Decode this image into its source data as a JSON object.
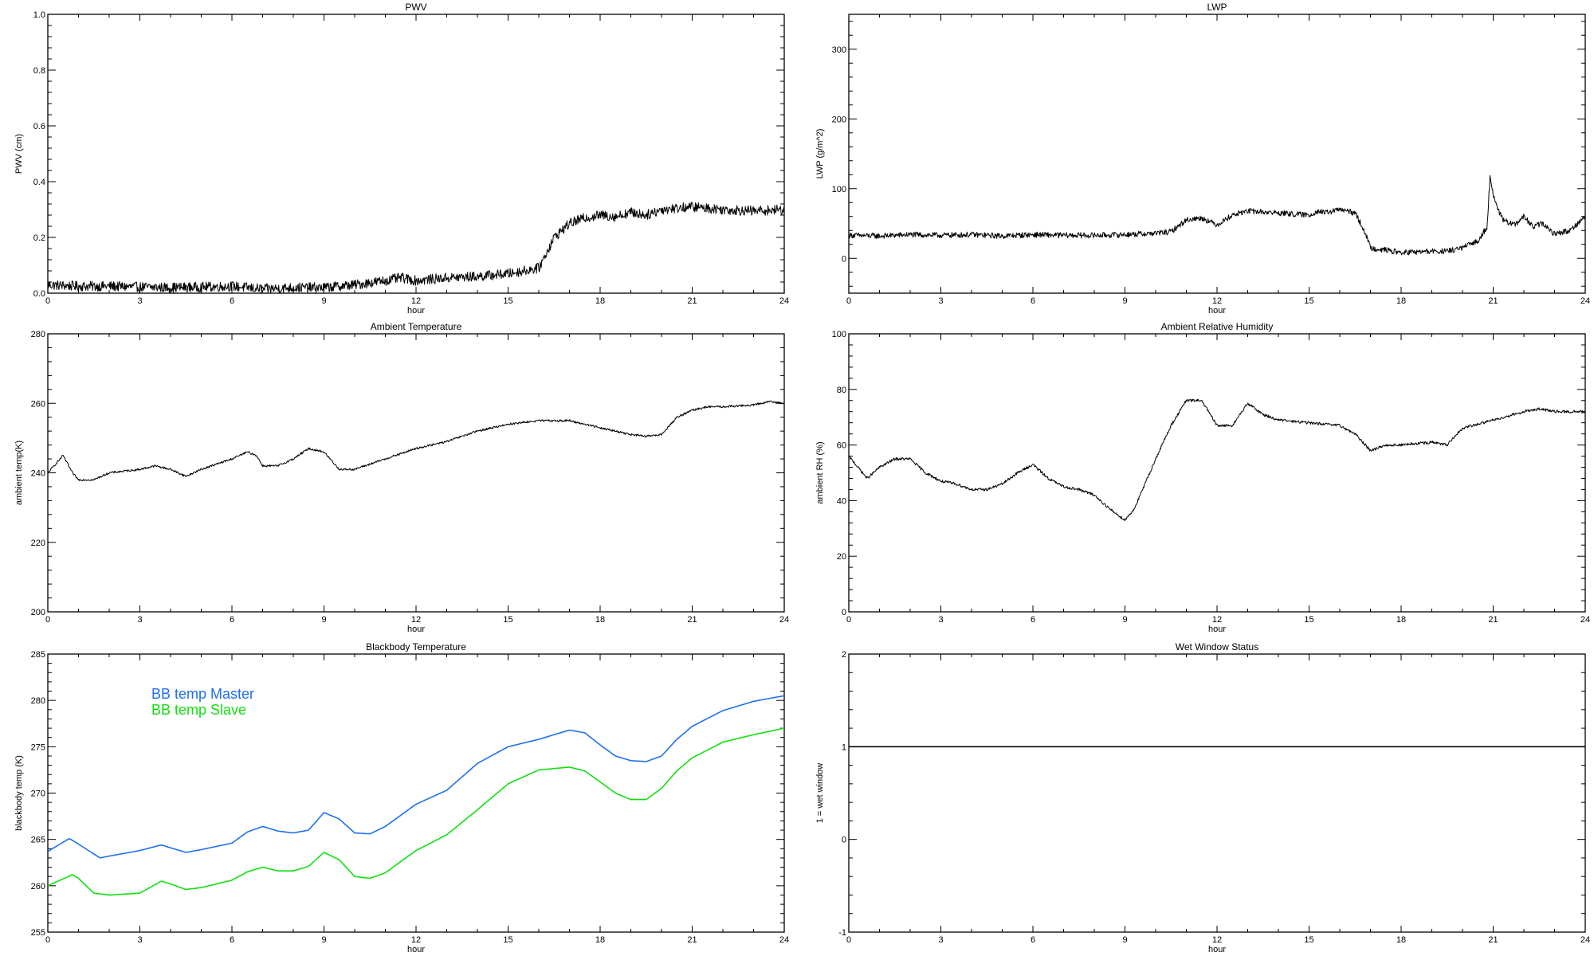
{
  "chart_data": [
    {
      "type": "line",
      "title": "PWV",
      "xlabel": "hour",
      "ylabel": "PWV (cm)",
      "xlim": [
        0,
        24
      ],
      "ylim": [
        0.0,
        1.0
      ],
      "xticks": [
        "0",
        "3",
        "6",
        "9",
        "12",
        "15",
        "18",
        "21",
        "24"
      ],
      "yticks": [
        "0.0",
        "0.2",
        "0.4",
        "0.6",
        "0.8",
        "1.0"
      ],
      "noise": 0.018,
      "series": [
        {
          "color": "#000000",
          "x": [
            0,
            1,
            2,
            3,
            4,
            5,
            6,
            7,
            8,
            9,
            10,
            11,
            11.5,
            12,
            13,
            14,
            15,
            15.5,
            16,
            16.5,
            17,
            17.5,
            18,
            18.5,
            19,
            19.5,
            20,
            21,
            22,
            23,
            24
          ],
          "y": [
            0.03,
            0.025,
            0.025,
            0.022,
            0.02,
            0.022,
            0.025,
            0.015,
            0.02,
            0.02,
            0.03,
            0.045,
            0.055,
            0.045,
            0.055,
            0.06,
            0.07,
            0.08,
            0.09,
            0.2,
            0.25,
            0.27,
            0.28,
            0.275,
            0.29,
            0.28,
            0.3,
            0.31,
            0.3,
            0.295,
            0.3
          ]
        }
      ]
    },
    {
      "type": "line",
      "title": "LWP",
      "xlabel": "hour",
      "ylabel": "LWP (g/m^2)",
      "xlim": [
        0,
        24
      ],
      "ylim": [
        -50,
        350
      ],
      "xticks": [
        "0",
        "3",
        "6",
        "9",
        "12",
        "15",
        "18",
        "21",
        "24"
      ],
      "yticks": [
        "0",
        "100",
        "200",
        "300"
      ],
      "noise": 4,
      "series": [
        {
          "color": "#000000",
          "x": [
            0,
            1,
            2,
            3,
            4,
            5,
            6,
            7,
            8,
            9,
            10,
            10.5,
            11,
            11.5,
            12,
            12.5,
            13,
            14,
            15,
            15.3,
            15.5,
            16,
            16.5,
            16.8,
            17,
            17.5,
            18,
            19,
            19.5,
            20,
            20.5,
            20.8,
            20.9,
            21,
            21.3,
            21.7,
            22,
            22.3,
            22.6,
            23,
            23.5,
            24
          ],
          "y": [
            33,
            32,
            34,
            33,
            34,
            32,
            34,
            33,
            33,
            34,
            36,
            38,
            55,
            58,
            48,
            62,
            68,
            65,
            62,
            68,
            65,
            70,
            65,
            40,
            15,
            12,
            8,
            10,
            10,
            15,
            25,
            45,
            120,
            90,
            55,
            48,
            60,
            45,
            50,
            35,
            40,
            60
          ]
        }
      ]
    },
    {
      "type": "line",
      "title": "Ambient Temperature",
      "xlabel": "hour",
      "ylabel": "ambient temp(K)",
      "xlim": [
        0,
        24
      ],
      "ylim": [
        200,
        280
      ],
      "xticks": [
        "0",
        "3",
        "6",
        "9",
        "12",
        "15",
        "18",
        "21",
        "24"
      ],
      "yticks": [
        "200",
        "220",
        "240",
        "260",
        "280"
      ],
      "noise": 0.3,
      "series": [
        {
          "color": "#000000",
          "x": [
            0,
            0.5,
            0.8,
            1,
            1.5,
            2,
            3,
            3.5,
            4,
            4.5,
            5,
            6,
            6.5,
            6.8,
            7,
            7.5,
            8,
            8.5,
            9,
            9.5,
            10,
            11,
            12,
            13,
            14,
            15,
            16,
            17,
            18,
            19,
            19.5,
            20,
            20.5,
            21,
            21.5,
            22,
            23,
            23.5,
            24
          ],
          "y": [
            240,
            245,
            240,
            238,
            238,
            240,
            241,
            242,
            241,
            239,
            241,
            244,
            246,
            245,
            242,
            242,
            244,
            247,
            246,
            241,
            241,
            244,
            247,
            249,
            252,
            254,
            255,
            255,
            253,
            251,
            250.5,
            251,
            256,
            258,
            259,
            259,
            259.5,
            260.5,
            260
          ]
        }
      ]
    },
    {
      "type": "line",
      "title": "Ambient Relative Humidity",
      "xlabel": "hour",
      "ylabel": "ambient RH (%)",
      "xlim": [
        0,
        24
      ],
      "ylim": [
        0,
        100
      ],
      "xticks": [
        "0",
        "3",
        "6",
        "9",
        "12",
        "15",
        "18",
        "21",
        "24"
      ],
      "yticks": [
        "0",
        "20",
        "40",
        "60",
        "80",
        "100"
      ],
      "noise": 0.5,
      "series": [
        {
          "color": "#000000",
          "x": [
            0,
            0.3,
            0.6,
            1,
            1.5,
            2,
            2.5,
            3,
            3.5,
            4,
            4.5,
            5,
            5.5,
            6,
            6.5,
            7,
            7.5,
            8,
            8.5,
            9,
            9.3,
            9.5,
            10,
            10.5,
            11,
            11.5,
            12,
            12.5,
            13,
            13.5,
            14,
            15,
            16,
            16.5,
            17,
            17.5,
            18,
            19,
            19.5,
            20,
            21,
            22,
            22.5,
            23,
            23.5,
            24
          ],
          "y": [
            56,
            52,
            48,
            52,
            55,
            55,
            50,
            47,
            46,
            44,
            44,
            46,
            50,
            53,
            48,
            45,
            44,
            42,
            37,
            33,
            37,
            42,
            55,
            67,
            76,
            76,
            67,
            67,
            75,
            71,
            69,
            68,
            67,
            64,
            58,
            60,
            60,
            61,
            60,
            66,
            69,
            72,
            73,
            72,
            72,
            72
          ]
        }
      ]
    },
    {
      "type": "line",
      "title": "Blackbody Temperature",
      "xlabel": "hour",
      "ylabel": "blackbody temp (K)",
      "xlim": [
        0,
        24
      ],
      "ylim": [
        255,
        285
      ],
      "xticks": [
        "0",
        "3",
        "6",
        "9",
        "12",
        "15",
        "18",
        "21",
        "24"
      ],
      "yticks": [
        "255",
        "260",
        "265",
        "270",
        "275",
        "280",
        "285"
      ],
      "legend": "top-left",
      "noise": 0,
      "series": [
        {
          "name": "BB temp Master",
          "color": "#1e6ff0",
          "x": [
            0,
            0.7,
            1,
            1.7,
            2,
            3,
            3.7,
            4,
            4.5,
            5,
            6,
            6.5,
            7,
            7.5,
            8,
            8.5,
            9,
            9.5,
            10,
            10.5,
            11,
            12,
            13,
            14,
            15,
            16,
            17,
            17.5,
            18,
            18.5,
            19,
            19.5,
            20,
            20.5,
            21,
            22,
            23,
            24
          ],
          "y": [
            263.7,
            265.1,
            264.5,
            263,
            263.2,
            263.8,
            264.4,
            264.1,
            263.6,
            263.9,
            264.6,
            265.8,
            266.4,
            265.9,
            265.7,
            266,
            267.9,
            267.2,
            265.7,
            265.6,
            266.4,
            268.8,
            270.3,
            273.2,
            275,
            275.8,
            276.8,
            276.5,
            275.2,
            274,
            273.5,
            273.4,
            274,
            275.8,
            277.2,
            278.9,
            279.9,
            280.5
          ]
        },
        {
          "name": "BB temp Slave",
          "color": "#10e010",
          "x": [
            0,
            0.8,
            1,
            1.5,
            2,
            3,
            3.7,
            4,
            4.5,
            5,
            6,
            6.5,
            7,
            7.5,
            8,
            8.5,
            9,
            9.5,
            10,
            10.5,
            11,
            12,
            13,
            14,
            15,
            16,
            17,
            17.5,
            18,
            18.5,
            19,
            19.5,
            20,
            20.5,
            21,
            22,
            23,
            24
          ],
          "y": [
            260,
            261.2,
            260.8,
            259.2,
            259,
            259.2,
            260.5,
            260.2,
            259.6,
            259.8,
            260.6,
            261.5,
            262,
            261.6,
            261.6,
            262.1,
            263.6,
            262.8,
            261,
            260.8,
            261.4,
            263.8,
            265.5,
            268.2,
            271,
            272.5,
            272.8,
            272.4,
            271.2,
            270,
            269.3,
            269.3,
            270.5,
            272.4,
            273.8,
            275.5,
            276.3,
            277
          ]
        }
      ]
    },
    {
      "type": "line",
      "title": "Wet Window Status",
      "xlabel": "hour",
      "ylabel": "1 = wet window",
      "xlim": [
        0,
        24
      ],
      "ylim": [
        -1,
        2
      ],
      "xticks": [
        "0",
        "3",
        "6",
        "9",
        "12",
        "15",
        "18",
        "21",
        "24"
      ],
      "yticks": [
        "-1",
        "0",
        "1",
        "2"
      ],
      "noise": 0,
      "series": [
        {
          "color": "#000000",
          "x": [
            0,
            24
          ],
          "y": [
            1,
            1
          ]
        }
      ]
    }
  ]
}
